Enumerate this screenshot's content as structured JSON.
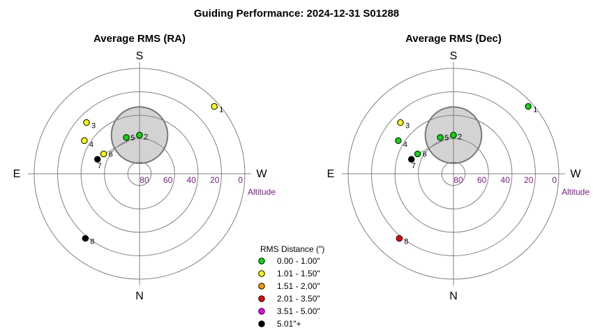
{
  "title": "Guiding Performance: 2024-12-31 S01288",
  "directions": {
    "top": "S",
    "bottom": "N",
    "left": "E",
    "right": "W"
  },
  "altitude_label": "Altitude",
  "legend": {
    "title": "RMS Distance (\")",
    "items": [
      {
        "label": "0.00 - 1.00\"",
        "color": "#00e000"
      },
      {
        "label": "1.01 - 1.50\"",
        "color": "#ffff00"
      },
      {
        "label": "1.51 - 2.00\"",
        "color": "#ff9900"
      },
      {
        "label": "2.01 - 3.50\"",
        "color": "#ee0000"
      },
      {
        "label": "3.51 - 5.00\"",
        "color": "#ff00ff"
      },
      {
        "label": "5.01\"+",
        "color": "#000000"
      }
    ]
  },
  "chart_data": [
    {
      "type": "scatter",
      "subtype": "polar",
      "title": "Average RMS (RA)",
      "altitude_ticks": [
        80,
        60,
        40,
        20,
        0
      ],
      "rlim": [
        90,
        0
      ],
      "exclusion_zone": {
        "azimuth": 0,
        "altitude": 57,
        "radius_deg": 13
      },
      "points": [
        {
          "label": "1",
          "azimuth": 228,
          "altitude": 4,
          "color": "#ffff00"
        },
        {
          "label": "2",
          "azimuth": 180,
          "altitude": 57,
          "color": "#00e000"
        },
        {
          "label": "3",
          "azimuth": 134,
          "altitude": 27,
          "color": "#ffff00"
        },
        {
          "label": "4",
          "azimuth": 121,
          "altitude": 35,
          "color": "#ffff00"
        },
        {
          "label": "5",
          "azimuth": 160,
          "altitude": 57,
          "color": "#00e000"
        },
        {
          "label": "6",
          "azimuth": 119,
          "altitude": 55,
          "color": "#ffff00"
        },
        {
          "label": "7",
          "azimuth": 109,
          "altitude": 52,
          "color": "#000000"
        },
        {
          "label": "8",
          "azimuth": 40,
          "altitude": 18,
          "color": "#000000"
        }
      ]
    },
    {
      "type": "scatter",
      "subtype": "polar",
      "title": "Average RMS (Dec)",
      "altitude_ticks": [
        80,
        60,
        40,
        20,
        0
      ],
      "rlim": [
        90,
        0
      ],
      "exclusion_zone": {
        "azimuth": 0,
        "altitude": 57,
        "radius_deg": 13
      },
      "points": [
        {
          "label": "1",
          "azimuth": 228,
          "altitude": 4,
          "color": "#00e000"
        },
        {
          "label": "2",
          "azimuth": 180,
          "altitude": 57,
          "color": "#00e000"
        },
        {
          "label": "3",
          "azimuth": 134,
          "altitude": 27,
          "color": "#ffff00"
        },
        {
          "label": "4",
          "azimuth": 121,
          "altitude": 35,
          "color": "#00e000"
        },
        {
          "label": "5",
          "azimuth": 160,
          "altitude": 57,
          "color": "#00e000"
        },
        {
          "label": "6",
          "azimuth": 119,
          "altitude": 55,
          "color": "#00e000"
        },
        {
          "label": "7",
          "azimuth": 109,
          "altitude": 52,
          "color": "#000000"
        },
        {
          "label": "8",
          "azimuth": 40,
          "altitude": 18,
          "color": "#ee0000"
        }
      ]
    }
  ]
}
